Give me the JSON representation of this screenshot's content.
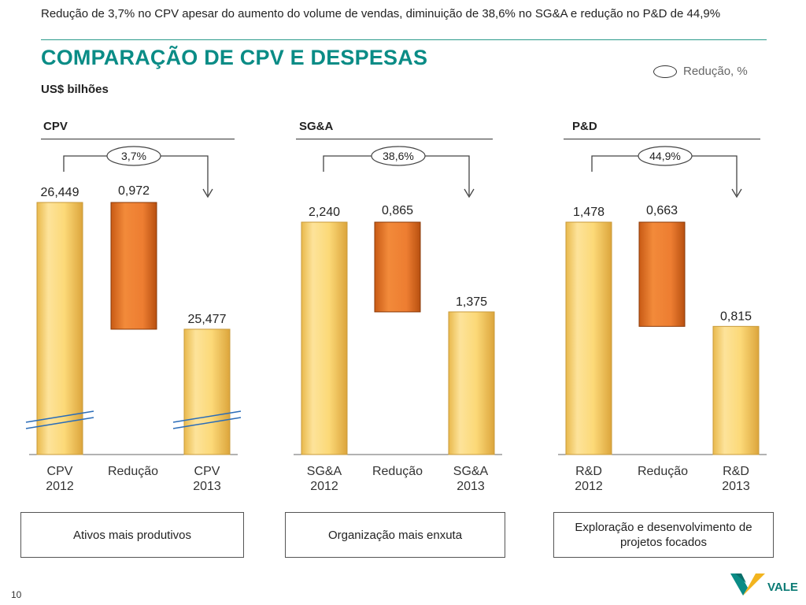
{
  "header": {
    "subtitle": "Redução de 3,7% no CPV apesar do aumento do volume de vendas, diminuição de 38,6% no SG&A e redução no P&D de 44,9%",
    "title": "COMPARAÇÃO DE CPV E DESPESAS",
    "unit": "US$ bilhões"
  },
  "legend": {
    "label": "Redução, %"
  },
  "colors": {
    "accent": "#0a8c86",
    "bar_total": "#fcd978",
    "bar_reduction": "#ed7d31"
  },
  "chart_data": [
    {
      "type": "bar",
      "title": "CPV",
      "categories": [
        "CPV\n2012",
        "Redução",
        "CPV\n2013"
      ],
      "values": [
        26.449,
        0.972,
        25.477
      ],
      "value_labels": [
        "26,449",
        "0,972",
        "25,477"
      ],
      "kinds": [
        "total",
        "reduction",
        "total"
      ],
      "reduction_pct": "3,7%",
      "axis_break": true,
      "note": "Ativos mais produtivos"
    },
    {
      "type": "bar",
      "title": "SG&A",
      "categories": [
        "SG&A\n2012",
        "Redução",
        "SG&A\n2013"
      ],
      "values": [
        2.24,
        0.865,
        1.375
      ],
      "value_labels": [
        "2,240",
        "0,865",
        "1,375"
      ],
      "kinds": [
        "total",
        "reduction",
        "total"
      ],
      "reduction_pct": "38,6%",
      "axis_break": false,
      "note": "Organização mais enxuta"
    },
    {
      "type": "bar",
      "title": "P&D",
      "categories": [
        "R&D\n2012",
        "Redução",
        "R&D\n2013"
      ],
      "values": [
        1.478,
        0.663,
        0.815
      ],
      "value_labels": [
        "1,478",
        "0,663",
        "0,815"
      ],
      "kinds": [
        "total",
        "reduction",
        "total"
      ],
      "reduction_pct": "44,9%",
      "axis_break": false,
      "note": "Exploração e desenvolvimento de projetos focados"
    }
  ],
  "footer": {
    "page_number": "10",
    "logo_text": "VALE"
  }
}
